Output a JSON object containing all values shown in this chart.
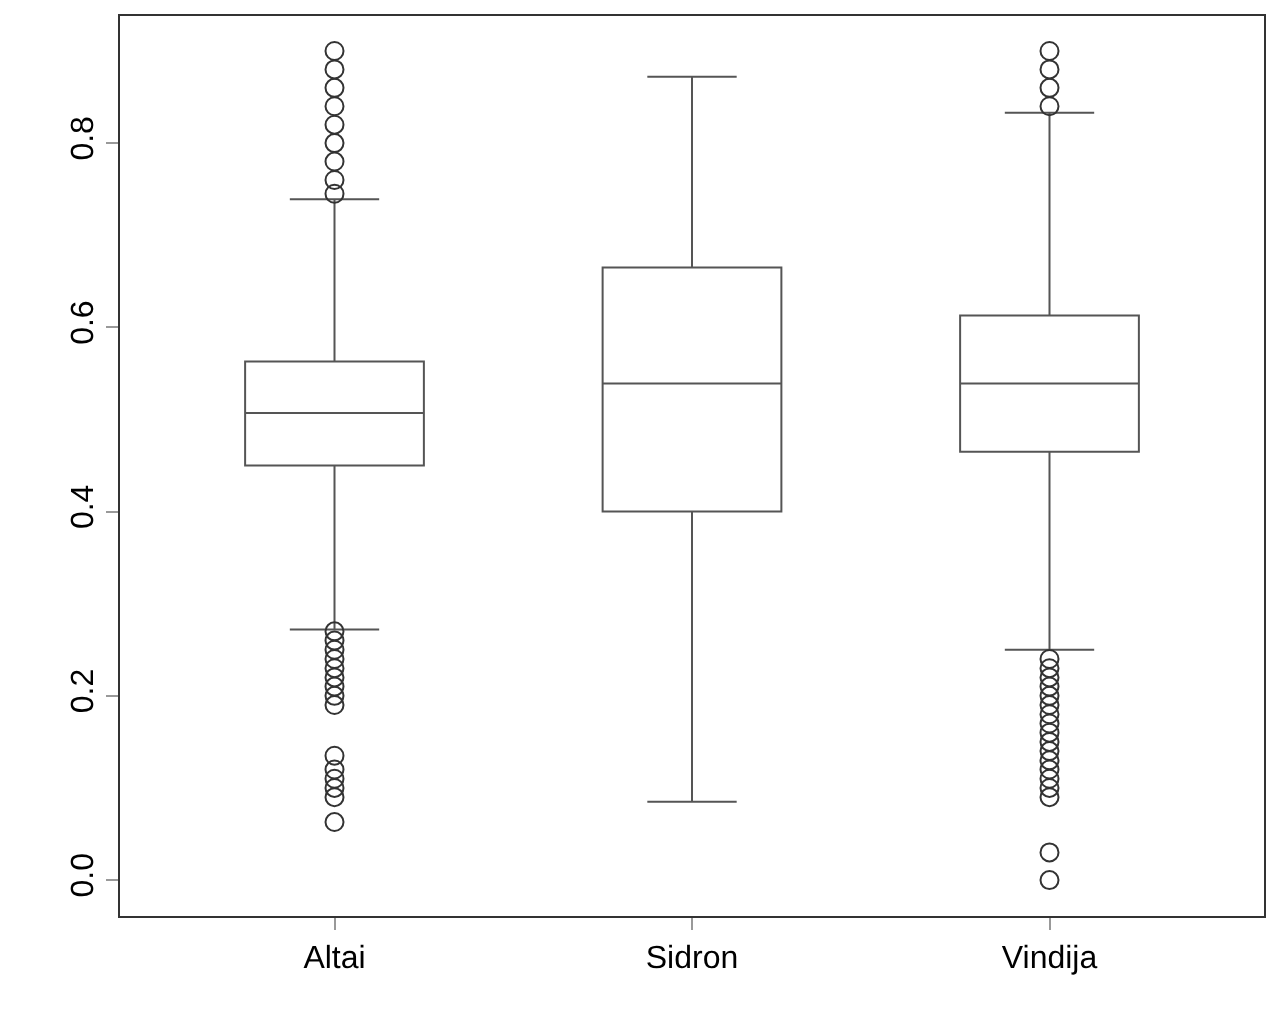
{
  "chart_data": {
    "type": "box",
    "categories": [
      "Altai",
      "Sidron",
      "Vindija"
    ],
    "boxes": [
      {
        "low": 0.272,
        "q1": 0.45,
        "median": 0.507,
        "q3": 0.563,
        "high": 0.739,
        "outliers": [
          0.063,
          0.09,
          0.1,
          0.11,
          0.12,
          0.135,
          0.19,
          0.2,
          0.21,
          0.22,
          0.23,
          0.24,
          0.25,
          0.26,
          0.27,
          0.745,
          0.76,
          0.78,
          0.8,
          0.82,
          0.84,
          0.86,
          0.88,
          0.9
        ]
      },
      {
        "low": 0.085,
        "q1": 0.4,
        "median": 0.539,
        "q3": 0.665,
        "high": 0.872
      },
      {
        "low": 0.25,
        "q1": 0.465,
        "median": 0.539,
        "q3": 0.613,
        "high": 0.833,
        "outliers": [
          0.0,
          0.03,
          0.09,
          0.1,
          0.11,
          0.12,
          0.13,
          0.14,
          0.15,
          0.16,
          0.17,
          0.18,
          0.19,
          0.2,
          0.21,
          0.22,
          0.23,
          0.24,
          0.84,
          0.86,
          0.88,
          0.9
        ]
      }
    ],
    "color": "#555555",
    "ylim": [
      -0.039,
      0.938
    ],
    "yticks": [
      {
        "value": 0.0,
        "label": "0.0"
      },
      {
        "value": 0.2,
        "label": "0.2"
      },
      {
        "value": 0.4,
        "label": "0.4"
      },
      {
        "value": 0.6,
        "label": "0.6"
      },
      {
        "value": 0.8,
        "label": "0.8"
      }
    ]
  }
}
